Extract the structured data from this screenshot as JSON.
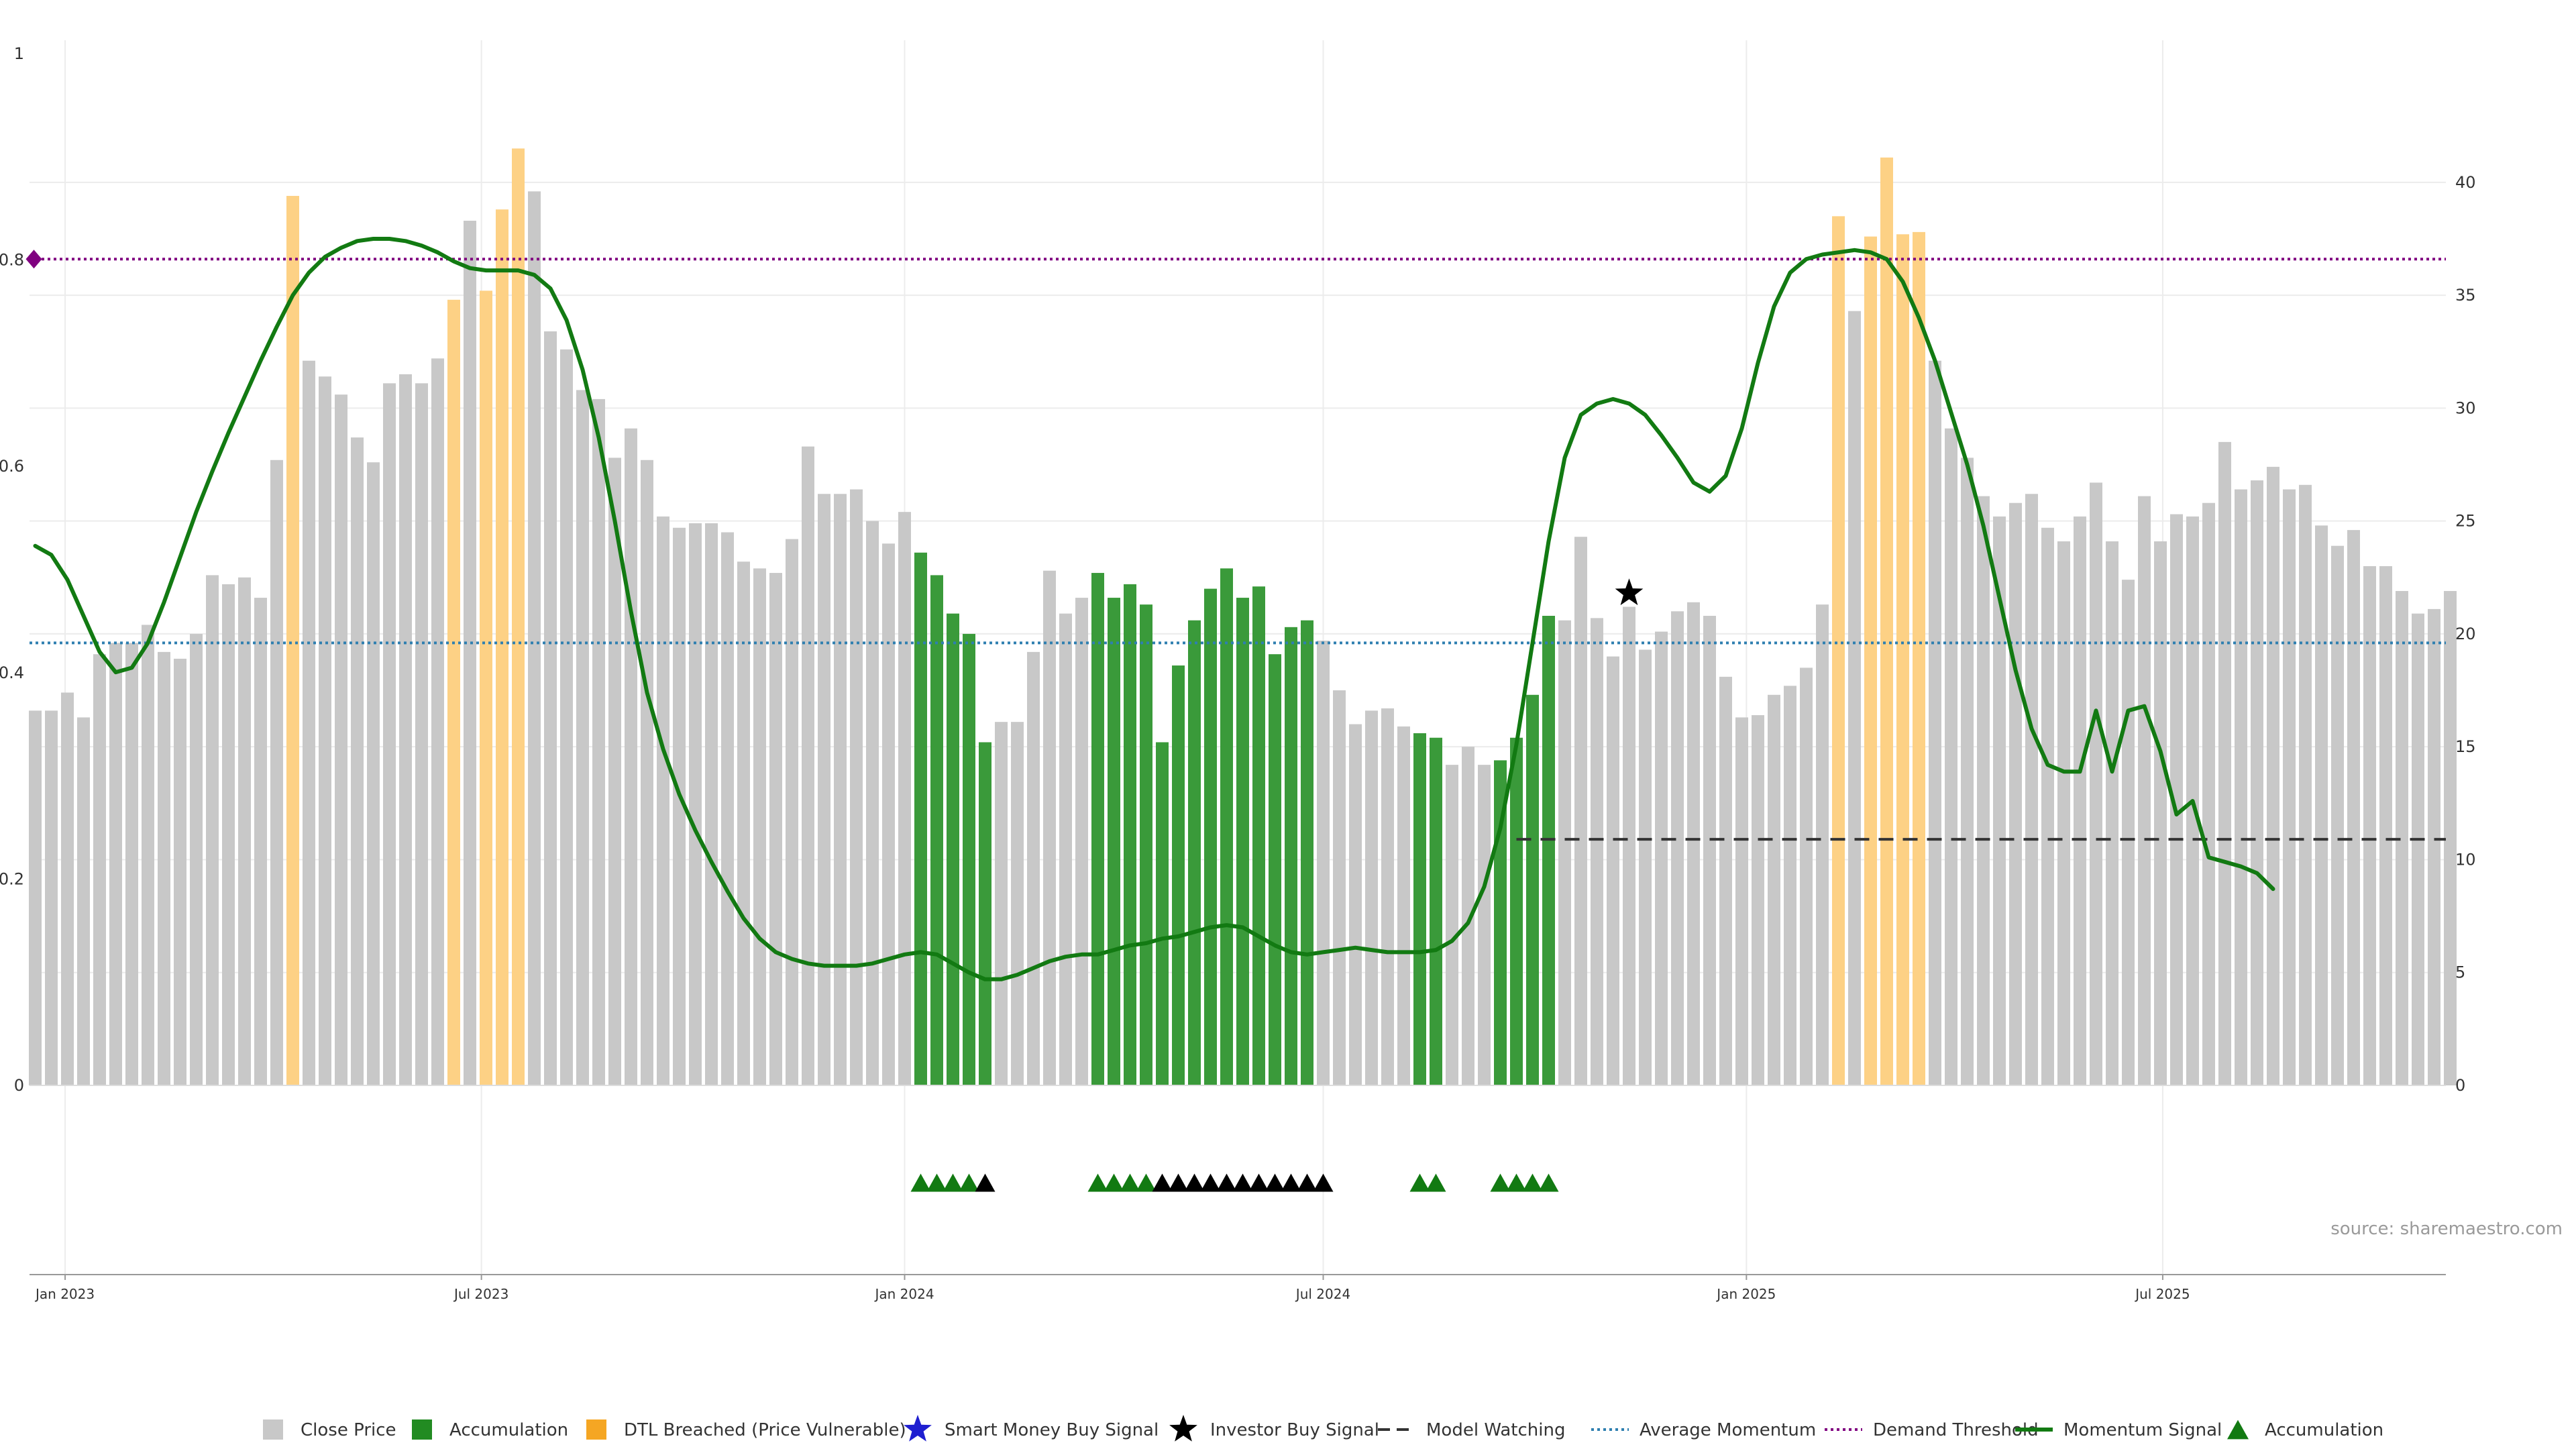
{
  "chart_data": {
    "type": "bar",
    "left_axis": {
      "ylim": [
        0,
        1
      ],
      "ticks": [
        0,
        0.2,
        0.4,
        0.6,
        0.8,
        1
      ],
      "tick_labels": [
        "0",
        "0.2",
        "0.4",
        "0.6",
        "0.8",
        "1"
      ]
    },
    "right_axis": {
      "ylim": [
        0,
        45.7
      ],
      "ticks": [
        0,
        5,
        10,
        15,
        20,
        25,
        30,
        35,
        40
      ],
      "tick_labels": [
        "0",
        "5",
        "10",
        "15",
        "20",
        "25",
        "30",
        "35",
        "40"
      ]
    },
    "x_axis": {
      "start_date": "2022-12-19",
      "end_date": "2025-11-24",
      "ticks": [
        {
          "date": "2023-01-01",
          "label": "Jan 2023"
        },
        {
          "date": "2023-07-01",
          "label": "Jul 2023"
        },
        {
          "date": "2024-01-01",
          "label": "Jan 2024"
        },
        {
          "date": "2024-07-01",
          "label": "Jul 2024"
        },
        {
          "date": "2025-01-01",
          "label": "Jan 2025"
        },
        {
          "date": "2025-07-01",
          "label": "Jul 2025"
        }
      ]
    },
    "grid": true,
    "bars": {
      "name": "Close Price",
      "first_date": "2022-12-19",
      "interval_days": 7,
      "values": [
        16.6,
        16.6,
        17.4,
        16.3,
        19.1,
        19.6,
        19.6,
        20.4,
        19.2,
        18.9,
        20,
        22.6,
        22.2,
        22.5,
        21.6,
        27.7,
        39.4,
        32.1,
        31.4,
        30.6,
        28.7,
        27.6,
        31.1,
        31.5,
        31.1,
        32.2,
        34.8,
        38.3,
        35.2,
        38.8,
        41.5,
        39.6,
        33.4,
        32.6,
        30.8,
        30.4,
        27.8,
        29.1,
        27.7,
        25.2,
        24.7,
        24.9,
        24.9,
        24.5,
        23.2,
        22.9,
        22.7,
        24.2,
        28.3,
        26.2,
        26.2,
        26.4,
        25,
        24,
        25.4,
        23.6,
        22.6,
        20.9,
        20,
        15.2,
        16.1,
        16.1,
        19.2,
        22.8,
        20.9,
        21.6,
        22.7,
        21.6,
        22.2,
        21.3,
        15.2,
        18.6,
        20.6,
        22,
        22.9,
        21.6,
        22.1,
        19.1,
        20.3,
        20.6,
        19.7,
        17.5,
        16,
        16.6,
        16.7,
        15.9,
        15.6,
        15.4,
        14.2,
        15,
        14.2,
        14.4,
        15.4,
        17.3,
        20.8,
        20.6,
        24.3,
        20.7,
        19,
        21.2,
        19.3,
        20.1,
        21,
        21.4,
        20.8,
        18.1,
        16.3,
        16.4,
        17.3,
        17.7,
        18.5,
        21.3,
        38.5,
        34.3,
        37.6,
        41.1,
        37.7,
        37.8,
        32.1,
        29.1,
        27.8,
        26.1,
        25.2,
        25.8,
        26.2,
        24.7,
        24.1,
        25.2,
        26.7,
        24.1,
        22.4,
        26.1,
        24.1,
        25.3,
        25.2,
        25.8,
        28.5,
        26.4,
        26.8,
        27.4,
        26.4,
        26.6,
        24.8,
        23.9,
        24.6,
        23,
        23,
        21.9,
        20.9,
        21.1,
        21.9
      ],
      "categories_by_week_index": {
        "DTL Breached (Price Vulnerable)": [
          16,
          26,
          28,
          29,
          30,
          112,
          114,
          115,
          116,
          117
        ],
        "Accumulation": [
          55,
          56,
          57,
          58,
          59,
          66,
          67,
          68,
          69,
          70,
          71,
          72,
          73,
          74,
          75,
          76,
          77,
          78,
          79,
          86,
          87,
          91,
          92,
          93,
          94
        ]
      }
    },
    "series": [
      {
        "name": "Momentum Signal",
        "axis": "right",
        "values": [
          23.9,
          23.5,
          22.4,
          20.8,
          19.2,
          18.3,
          18.5,
          19.6,
          21.4,
          23.4,
          25.4,
          27.2,
          28.9,
          30.5,
          32.1,
          33.6,
          35,
          36,
          36.7,
          37.1,
          37.4,
          37.5,
          37.5,
          37.4,
          37.2,
          36.9,
          36.5,
          36.2,
          36.1,
          36.1,
          36.1,
          35.9,
          35.3,
          33.9,
          31.7,
          28.7,
          25,
          21,
          17.4,
          14.9,
          12.9,
          11.3,
          9.9,
          8.6,
          7.4,
          6.5,
          5.9,
          5.6,
          5.4,
          5.3,
          5.3,
          5.3,
          5.4,
          5.6,
          5.8,
          5.9,
          5.8,
          5.4,
          5,
          4.7,
          4.7,
          4.9,
          5.2,
          5.5,
          5.7,
          5.8,
          5.8,
          6,
          6.2,
          6.3,
          6.5,
          6.6,
          6.8,
          7,
          7.1,
          7,
          6.6,
          6.2,
          5.9,
          5.8,
          5.9,
          6,
          6.1,
          6,
          5.9,
          5.9,
          5.9,
          6,
          6.4,
          7.2,
          8.8,
          11.4,
          15.1,
          19.6,
          24.1,
          27.8,
          29.7,
          30.2,
          30.4,
          30.2,
          29.7,
          28.8,
          27.8,
          26.7,
          26.3,
          27,
          29.1,
          32,
          34.5,
          36,
          36.6,
          36.8,
          36.9,
          37,
          36.9,
          36.6,
          35.6,
          34,
          32.1,
          29.8,
          27.5,
          24.8,
          21.6,
          18.4,
          15.8,
          14.2,
          13.9,
          13.9,
          16.6,
          13.9,
          16.6,
          16.8,
          14.8,
          12,
          12.6,
          10.1,
          9.9,
          9.7,
          9.4,
          8.7
        ]
      },
      {
        "name": "Average Momentum",
        "axis": "right",
        "value": 19.6
      },
      {
        "name": "Demand Threshold",
        "axis": "right",
        "value": 36.6
      },
      {
        "name": "Model Watching",
        "axis": "right",
        "value": 10.9,
        "start_week_index": 92
      }
    ],
    "markers": {
      "Investor Buy Signal": [
        {
          "week_index": 99,
          "value": 21.8
        }
      ],
      "Demand Threshold": [
        {
          "week_index": 0,
          "value": 36.6
        }
      ],
      "Accumulation": [
        55,
        56,
        57,
        58,
        66,
        67,
        68,
        69,
        86,
        87,
        91,
        92,
        93,
        94
      ],
      "Investor Buy Signal (lower panel)": [
        59,
        70,
        71,
        72,
        73,
        74,
        75,
        76,
        77,
        78,
        79,
        80
      ]
    },
    "legend": {
      "placement": "bottom-center",
      "items": [
        {
          "label": "Close Price",
          "kind": "square",
          "color": "#c8c8c8"
        },
        {
          "label": "Accumulation",
          "kind": "square",
          "color": "#228b22"
        },
        {
          "label": "DTL Breached (Price Vulnerable)",
          "kind": "square",
          "color": "#f5a623"
        },
        {
          "label": "Smart Money Buy Signal",
          "kind": "star",
          "color": "#1f1fd0"
        },
        {
          "label": "Investor Buy Signal",
          "kind": "star",
          "color": "#000000"
        },
        {
          "label": "Model Watching",
          "kind": "dash",
          "color": "#333333"
        },
        {
          "label": "Average Momentum",
          "kind": "dot",
          "color": "#2e7fb0"
        },
        {
          "label": "Demand Threshold",
          "kind": "dot",
          "color": "#800080"
        },
        {
          "label": "Momentum Signal",
          "kind": "line",
          "color": "#127a12"
        },
        {
          "label": "Accumulation",
          "kind": "triangle",
          "color": "#127a12"
        }
      ]
    },
    "colors": {
      "close_price": "#c8c8c8",
      "accumulation": "#3a9a3a",
      "dtl_breached": "#fdd185",
      "momentum": "#127a12",
      "average_momentum": "#2e7fb0",
      "demand_threshold": "#800080",
      "model_watching": "#333333"
    },
    "source": "source: sharemaestro.com"
  }
}
